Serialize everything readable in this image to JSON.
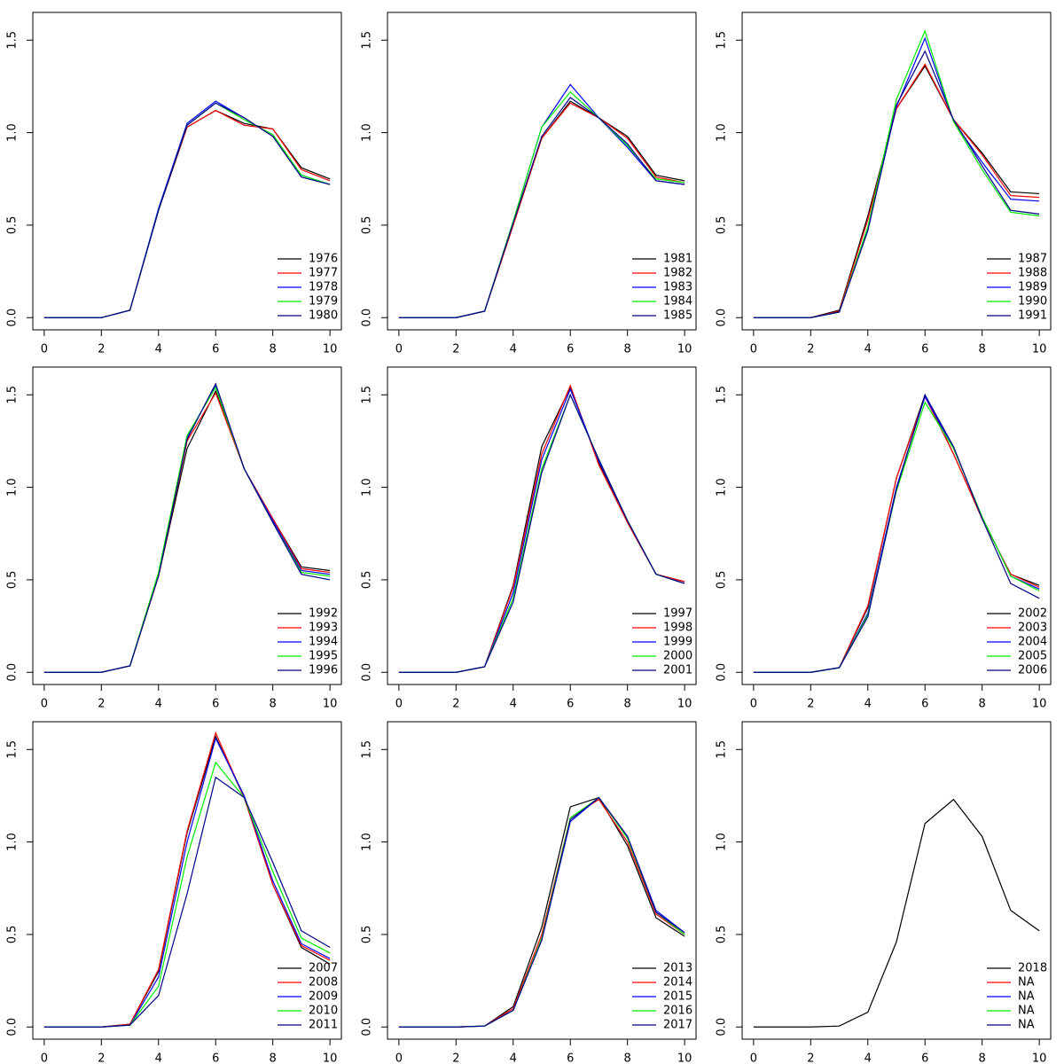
{
  "chart_data": [
    {
      "type": "line",
      "x": [
        0,
        1,
        2,
        3,
        4,
        5,
        6,
        7,
        8,
        9,
        10
      ],
      "xlim": [
        -0.4,
        10.4
      ],
      "ylim": [
        -0.066,
        1.65
      ],
      "xticks": [
        0,
        2,
        4,
        6,
        8,
        10
      ],
      "yticks": [
        {
          "value": 0,
          "label": "0.0"
        },
        0.5,
        {
          "value": 1,
          "label": "1.0"
        },
        1.5
      ],
      "legend": "bottomright",
      "series": [
        {
          "name": "1976",
          "color": "#000000",
          "values": [
            0,
            0,
            0,
            0.04,
            0.58,
            1.03,
            1.12,
            1.05,
            1.02,
            0.81,
            0.75
          ]
        },
        {
          "name": "1977",
          "color": "#ff0000",
          "values": [
            0,
            0,
            0,
            0.04,
            0.58,
            1.03,
            1.12,
            1.04,
            1.02,
            0.8,
            0.74
          ]
        },
        {
          "name": "1978",
          "color": "#0000ff",
          "values": [
            0,
            0,
            0,
            0.04,
            0.59,
            1.05,
            1.17,
            1.08,
            0.98,
            0.77,
            0.72
          ]
        },
        {
          "name": "1979",
          "color": "#00ee00",
          "values": [
            0,
            0,
            0,
            0.04,
            0.58,
            1.04,
            1.16,
            1.07,
            0.99,
            0.77,
            0.72
          ]
        },
        {
          "name": "1980",
          "color": "#00008b",
          "values": [
            0,
            0,
            0,
            0.04,
            0.58,
            1.04,
            1.16,
            1.08,
            0.98,
            0.76,
            0.72
          ]
        }
      ]
    },
    {
      "type": "line",
      "x": [
        0,
        1,
        2,
        3,
        4,
        5,
        6,
        7,
        8,
        9,
        10
      ],
      "xlim": [
        -0.4,
        10.4
      ],
      "ylim": [
        -0.066,
        1.65
      ],
      "xticks": [
        0,
        2,
        4,
        6,
        8,
        10
      ],
      "yticks": [
        {
          "value": 0,
          "label": "0.0"
        },
        0.5,
        {
          "value": 1,
          "label": "1.0"
        },
        1.5
      ],
      "legend": "bottomright",
      "series": [
        {
          "name": "1981",
          "color": "#000000",
          "values": [
            0,
            0,
            0,
            0.035,
            0.5,
            0.97,
            1.17,
            1.08,
            0.98,
            0.77,
            0.74
          ]
        },
        {
          "name": "1982",
          "color": "#ff0000",
          "values": [
            0,
            0,
            0,
            0.035,
            0.5,
            0.97,
            1.16,
            1.08,
            0.97,
            0.76,
            0.73
          ]
        },
        {
          "name": "1983",
          "color": "#0000ff",
          "values": [
            0,
            0,
            0,
            0.035,
            0.52,
            1.03,
            1.26,
            1.08,
            0.92,
            0.74,
            0.72
          ]
        },
        {
          "name": "1984",
          "color": "#00ee00",
          "values": [
            0,
            0,
            0,
            0.035,
            0.52,
            1.03,
            1.22,
            1.08,
            0.93,
            0.75,
            0.73
          ]
        },
        {
          "name": "1985",
          "color": "#00008b",
          "values": [
            0,
            0,
            0,
            0.035,
            0.51,
            0.98,
            1.19,
            1.08,
            0.94,
            0.74,
            0.72
          ]
        }
      ]
    },
    {
      "type": "line",
      "x": [
        0,
        1,
        2,
        3,
        4,
        5,
        6,
        7,
        8,
        9,
        10
      ],
      "xlim": [
        -0.4,
        10.4
      ],
      "ylim": [
        -0.066,
        1.65
      ],
      "xticks": [
        0,
        2,
        4,
        6,
        8,
        10
      ],
      "yticks": [
        {
          "value": 0,
          "label": "0.0"
        },
        0.5,
        {
          "value": 1,
          "label": "1.0"
        },
        1.5
      ],
      "legend": "bottomright",
      "series": [
        {
          "name": "1987",
          "color": "#000000",
          "values": [
            0,
            0,
            0,
            0.04,
            0.55,
            1.13,
            1.36,
            1.07,
            0.89,
            0.68,
            0.67
          ]
        },
        {
          "name": "1988",
          "color": "#ff0000",
          "values": [
            0,
            0,
            0,
            0.035,
            0.53,
            1.13,
            1.37,
            1.07,
            0.88,
            0.66,
            0.65
          ]
        },
        {
          "name": "1989",
          "color": "#0000ff",
          "values": [
            0,
            0,
            0,
            0.03,
            0.48,
            1.14,
            1.51,
            1.06,
            0.84,
            0.64,
            0.63
          ]
        },
        {
          "name": "1990",
          "color": "#00ee00",
          "values": [
            0,
            0,
            0,
            0.03,
            0.49,
            1.18,
            1.55,
            1.06,
            0.8,
            0.57,
            0.55
          ]
        },
        {
          "name": "1991",
          "color": "#00008b",
          "values": [
            0,
            0,
            0,
            0.03,
            0.47,
            1.15,
            1.44,
            1.07,
            0.82,
            0.58,
            0.56
          ]
        }
      ]
    },
    {
      "type": "line",
      "x": [
        0,
        1,
        2,
        3,
        4,
        5,
        6,
        7,
        8,
        9,
        10
      ],
      "xlim": [
        -0.4,
        10.4
      ],
      "ylim": [
        -0.066,
        1.65
      ],
      "xticks": [
        0,
        2,
        4,
        6,
        8,
        10
      ],
      "yticks": [
        {
          "value": 0,
          "label": "0.0"
        },
        0.5,
        {
          "value": 1,
          "label": "1.0"
        },
        1.5
      ],
      "legend": "bottomright",
      "series": [
        {
          "name": "1992",
          "color": "#000000",
          "values": [
            0,
            0,
            0,
            0.035,
            0.52,
            1.21,
            1.52,
            1.1,
            0.83,
            0.57,
            0.55
          ]
        },
        {
          "name": "1993",
          "color": "#ff0000",
          "values": [
            0,
            0,
            0,
            0.035,
            0.52,
            1.25,
            1.51,
            1.1,
            0.83,
            0.56,
            0.54
          ]
        },
        {
          "name": "1994",
          "color": "#0000ff",
          "values": [
            0,
            0,
            0,
            0.035,
            0.53,
            1.27,
            1.55,
            1.1,
            0.82,
            0.55,
            0.53
          ]
        },
        {
          "name": "1995",
          "color": "#00ee00",
          "values": [
            0,
            0,
            0,
            0.035,
            0.54,
            1.28,
            1.54,
            1.1,
            0.81,
            0.54,
            0.52
          ]
        },
        {
          "name": "1996",
          "color": "#00008b",
          "values": [
            0,
            0,
            0,
            0.035,
            0.52,
            1.26,
            1.56,
            1.1,
            0.81,
            0.53,
            0.5
          ]
        }
      ]
    },
    {
      "type": "line",
      "x": [
        0,
        1,
        2,
        3,
        4,
        5,
        6,
        7,
        8,
        9,
        10
      ],
      "xlim": [
        -0.4,
        10.4
      ],
      "ylim": [
        -0.066,
        1.65
      ],
      "xticks": [
        0,
        2,
        4,
        6,
        8,
        10
      ],
      "yticks": [
        {
          "value": 0,
          "label": "0.0"
        },
        0.5,
        {
          "value": 1,
          "label": "1.0"
        },
        1.5
      ],
      "legend": "bottomright",
      "series": [
        {
          "name": "1997",
          "color": "#000000",
          "values": [
            0,
            0,
            0,
            0.03,
            0.47,
            1.22,
            1.54,
            1.13,
            0.81,
            0.53,
            0.49
          ]
        },
        {
          "name": "1998",
          "color": "#ff0000",
          "values": [
            0,
            0,
            0,
            0.03,
            0.46,
            1.18,
            1.55,
            1.12,
            0.81,
            0.53,
            0.49
          ]
        },
        {
          "name": "1999",
          "color": "#0000ff",
          "values": [
            0,
            0,
            0,
            0.03,
            0.43,
            1.15,
            1.53,
            1.14,
            0.82,
            0.53,
            0.48
          ]
        },
        {
          "name": "2000",
          "color": "#00ee00",
          "values": [
            0,
            0,
            0,
            0.03,
            0.4,
            1.1,
            1.5,
            1.15,
            0.82,
            0.53,
            0.48
          ]
        },
        {
          "name": "2001",
          "color": "#00008b",
          "values": [
            0,
            0,
            0,
            0.03,
            0.38,
            1.08,
            1.5,
            1.15,
            0.82,
            0.53,
            0.48
          ]
        }
      ]
    },
    {
      "type": "line",
      "x": [
        0,
        1,
        2,
        3,
        4,
        5,
        6,
        7,
        8,
        9,
        10
      ],
      "xlim": [
        -0.4,
        10.4
      ],
      "ylim": [
        -0.066,
        1.65
      ],
      "xticks": [
        0,
        2,
        4,
        6,
        8,
        10
      ],
      "yticks": [
        {
          "value": 0,
          "label": "0.0"
        },
        0.5,
        {
          "value": 1,
          "label": "1.0"
        },
        1.5
      ],
      "legend": "bottomright",
      "series": [
        {
          "name": "2002",
          "color": "#000000",
          "values": [
            0,
            0,
            0,
            0.025,
            0.35,
            1.05,
            1.5,
            1.18,
            0.83,
            0.53,
            0.47
          ]
        },
        {
          "name": "2003",
          "color": "#ff0000",
          "values": [
            0,
            0,
            0,
            0.025,
            0.36,
            1.05,
            1.49,
            1.18,
            0.83,
            0.53,
            0.46
          ]
        },
        {
          "name": "2004",
          "color": "#0000ff",
          "values": [
            0,
            0,
            0,
            0.025,
            0.32,
            1.0,
            1.49,
            1.21,
            0.84,
            0.52,
            0.45
          ]
        },
        {
          "name": "2005",
          "color": "#00ee00",
          "values": [
            0,
            0,
            0,
            0.025,
            0.31,
            0.98,
            1.46,
            1.21,
            0.84,
            0.52,
            0.44
          ]
        },
        {
          "name": "2006",
          "color": "#00008b",
          "values": [
            0,
            0,
            0,
            0.025,
            0.3,
            0.99,
            1.5,
            1.22,
            0.83,
            0.48,
            0.4
          ]
        }
      ]
    },
    {
      "type": "line",
      "x": [
        0,
        1,
        2,
        3,
        4,
        5,
        6,
        7,
        8,
        9,
        10
      ],
      "xlim": [
        -0.4,
        10.4
      ],
      "ylim": [
        -0.066,
        1.65
      ],
      "xticks": [
        0,
        2,
        4,
        6,
        8,
        10
      ],
      "yticks": [
        {
          "value": 0,
          "label": "0.0"
        },
        0.5,
        {
          "value": 1,
          "label": "1.0"
        },
        1.5
      ],
      "legend": "bottomright",
      "series": [
        {
          "name": "2007",
          "color": "#000000",
          "values": [
            0,
            0,
            0,
            0.015,
            0.3,
            1.05,
            1.57,
            1.24,
            0.77,
            0.43,
            0.34
          ]
        },
        {
          "name": "2008",
          "color": "#ff0000",
          "values": [
            0,
            0,
            0,
            0.015,
            0.31,
            1.06,
            1.59,
            1.24,
            0.77,
            0.44,
            0.36
          ]
        },
        {
          "name": "2009",
          "color": "#0000ff",
          "values": [
            0,
            0,
            0,
            0.01,
            0.27,
            1.0,
            1.56,
            1.25,
            0.79,
            0.45,
            0.37
          ]
        },
        {
          "name": "2010",
          "color": "#00ee00",
          "values": [
            0,
            0,
            0,
            0.01,
            0.22,
            0.92,
            1.43,
            1.24,
            0.84,
            0.48,
            0.4
          ]
        },
        {
          "name": "2011",
          "color": "#00008b",
          "values": [
            0,
            0,
            0,
            0.01,
            0.17,
            0.72,
            1.35,
            1.24,
            0.89,
            0.52,
            0.43
          ]
        }
      ]
    },
    {
      "type": "line",
      "x": [
        0,
        1,
        2,
        3,
        4,
        5,
        6,
        7,
        8,
        9,
        10
      ],
      "xlim": [
        -0.4,
        10.4
      ],
      "ylim": [
        -0.066,
        1.65
      ],
      "xticks": [
        0,
        2,
        4,
        6,
        8,
        10
      ],
      "yticks": [
        {
          "value": 0,
          "label": "0.0"
        },
        0.5,
        {
          "value": 1,
          "label": "1.0"
        },
        1.5
      ],
      "legend": "bottomright",
      "series": [
        {
          "name": "2013",
          "color": "#000000",
          "values": [
            0,
            0,
            0,
            0.005,
            0.11,
            0.54,
            1.19,
            1.24,
            0.98,
            0.59,
            0.49
          ]
        },
        {
          "name": "2014",
          "color": "#ff0000",
          "values": [
            0,
            0,
            0,
            0.005,
            0.1,
            0.5,
            1.13,
            1.23,
            1.0,
            0.61,
            0.5
          ]
        },
        {
          "name": "2015",
          "color": "#0000ff",
          "values": [
            0,
            0,
            0,
            0.005,
            0.09,
            0.47,
            1.11,
            1.24,
            1.03,
            0.63,
            0.51
          ]
        },
        {
          "name": "2016",
          "color": "#00ee00",
          "values": [
            0,
            0,
            0,
            0.005,
            0.09,
            0.48,
            1.13,
            1.24,
            1.02,
            0.62,
            0.5
          ]
        },
        {
          "name": "2017",
          "color": "#00008b",
          "values": [
            0,
            0,
            0,
            0.005,
            0.09,
            0.47,
            1.12,
            1.24,
            1.03,
            0.62,
            0.51
          ]
        }
      ]
    },
    {
      "type": "line",
      "x": [
        0,
        1,
        2,
        3,
        4,
        5,
        6,
        7,
        8,
        9,
        10
      ],
      "xlim": [
        -0.4,
        10.4
      ],
      "ylim": [
        -0.066,
        1.65
      ],
      "xticks": [
        0,
        2,
        4,
        6,
        8,
        10
      ],
      "yticks": [
        {
          "value": 0,
          "label": "0.0"
        },
        0.5,
        {
          "value": 1,
          "label": "1.0"
        },
        1.5
      ],
      "legend": "bottomright",
      "series": [
        {
          "name": "2018",
          "color": "#000000",
          "values": [
            0,
            0,
            0,
            0.005,
            0.08,
            0.46,
            1.1,
            1.23,
            1.03,
            0.63,
            0.52
          ]
        },
        {
          "name": "NA",
          "color": "#ff0000",
          "values": [
            null,
            null,
            null,
            null,
            null,
            null,
            null,
            null,
            null,
            null,
            null
          ]
        },
        {
          "name": "NA",
          "color": "#0000ff",
          "values": [
            null,
            null,
            null,
            null,
            null,
            null,
            null,
            null,
            null,
            null,
            null
          ]
        },
        {
          "name": "NA",
          "color": "#00ee00",
          "values": [
            null,
            null,
            null,
            null,
            null,
            null,
            null,
            null,
            null,
            null,
            null
          ]
        },
        {
          "name": "NA",
          "color": "#00008b",
          "values": [
            null,
            null,
            null,
            null,
            null,
            null,
            null,
            null,
            null,
            null,
            null
          ]
        }
      ]
    }
  ]
}
